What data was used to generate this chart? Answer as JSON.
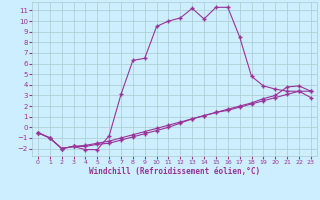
{
  "bg_color": "#cceeff",
  "line_color": "#993399",
  "grid_color": "#aacccc",
  "xlabel": "Windchill (Refroidissement éolien,°C)",
  "xlim": [
    -0.5,
    23.5
  ],
  "ylim": [
    -2.7,
    11.8
  ],
  "xticks": [
    0,
    1,
    2,
    3,
    4,
    5,
    6,
    7,
    8,
    9,
    10,
    11,
    12,
    13,
    14,
    15,
    16,
    17,
    18,
    19,
    20,
    21,
    22,
    23
  ],
  "yticks": [
    -2,
    -1,
    0,
    1,
    2,
    3,
    4,
    5,
    6,
    7,
    8,
    9,
    10,
    11
  ],
  "curve1_x": [
    0,
    1,
    2,
    3,
    4,
    5,
    6,
    7,
    8,
    9,
    10,
    11,
    12,
    13,
    14,
    15,
    16,
    17,
    18,
    19,
    20,
    21,
    22,
    23
  ],
  "curve1_y": [
    -0.5,
    -1.0,
    -2.0,
    -1.8,
    -2.1,
    -2.1,
    -0.8,
    3.1,
    6.3,
    6.5,
    9.5,
    10.0,
    10.3,
    11.2,
    10.2,
    11.3,
    11.3,
    8.5,
    4.8,
    3.9,
    3.6,
    3.4,
    3.4,
    3.4
  ],
  "curve2_x": [
    0,
    1,
    2,
    3,
    4,
    5,
    6,
    7,
    8,
    9,
    10,
    11,
    12,
    13,
    14,
    15,
    16,
    17,
    18,
    19,
    20,
    21,
    22,
    23
  ],
  "curve2_y": [
    -0.5,
    -1.0,
    -2.0,
    -1.8,
    -1.8,
    -1.6,
    -1.5,
    -1.2,
    -0.9,
    -0.6,
    -0.3,
    0.0,
    0.4,
    0.8,
    1.1,
    1.4,
    1.7,
    2.0,
    2.3,
    2.7,
    3.0,
    3.8,
    3.9,
    3.4
  ],
  "curve3_x": [
    0,
    1,
    2,
    3,
    4,
    5,
    6,
    7,
    8,
    9,
    10,
    11,
    12,
    13,
    14,
    15,
    16,
    17,
    18,
    19,
    20,
    21,
    22,
    23
  ],
  "curve3_y": [
    -0.5,
    -1.0,
    -2.0,
    -1.8,
    -1.7,
    -1.5,
    -1.3,
    -1.0,
    -0.7,
    -0.4,
    -0.1,
    0.2,
    0.5,
    0.8,
    1.1,
    1.4,
    1.6,
    1.9,
    2.2,
    2.5,
    2.8,
    3.1,
    3.4,
    2.8
  ]
}
